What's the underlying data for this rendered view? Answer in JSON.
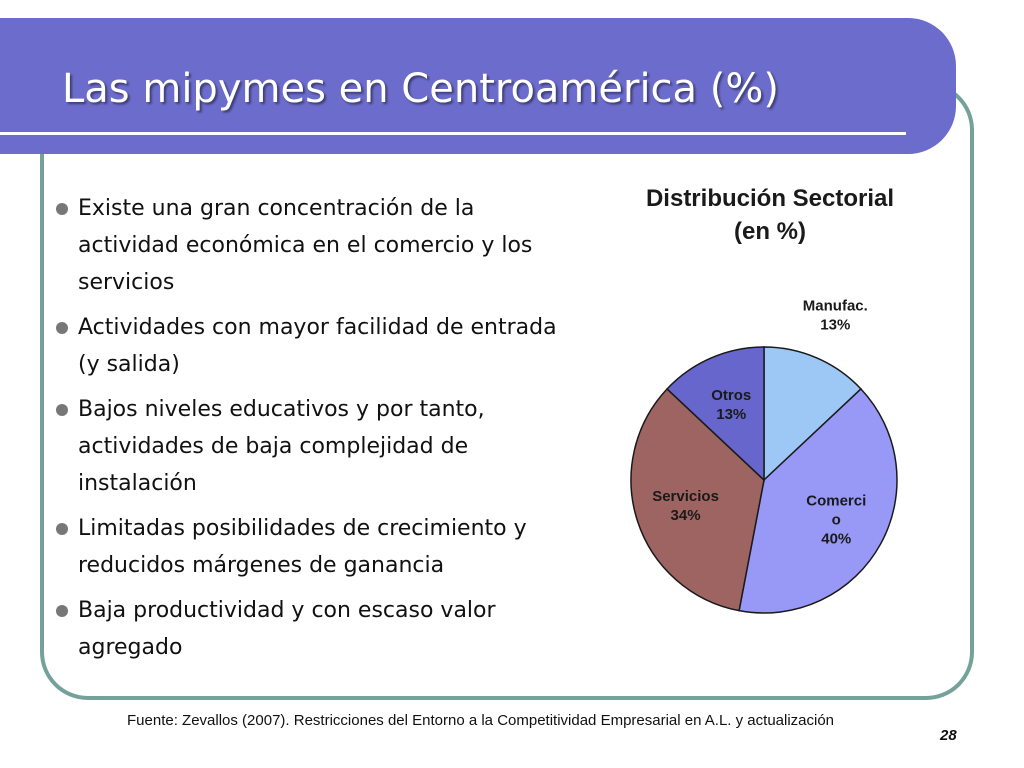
{
  "slide": {
    "title": "Las mipymes en Centroamérica (%)",
    "page_number": "28",
    "source": "Fuente: Zevallos (2007). Restricciones del Entorno a la Competitividad Empresarial en A.L. y actualización"
  },
  "bullets": [
    "Existe una gran concentración de la actividad económica en el comercio y los servicios",
    "Actividades con mayor facilidad de entrada (y salida)",
    "Bajos niveles educativos y por tanto, actividades de baja complejidad de instalación",
    "Limitadas posibilidades de crecimiento y reducidos márgenes de ganancia",
    "Baja productividad y con escaso valor agregado"
  ],
  "colors": {
    "title_bar": "#6c6ccc",
    "frame_border": "#74a29a"
  },
  "chart_data": {
    "type": "pie",
    "title": "Distribución Sectorial",
    "subtitle": "(en %)",
    "slices": [
      {
        "label": "Manufac.",
        "value": 13,
        "value_label": "13%",
        "color": "#9dc8f6"
      },
      {
        "label": "Comerci\no",
        "value": 40,
        "value_label": "40%",
        "color": "#9898f6"
      },
      {
        "label": "Servicios",
        "value": 34,
        "value_label": "34%",
        "color": "#9e6462"
      },
      {
        "label": "Otros",
        "value": 13,
        "value_label": "13%",
        "color": "#6666cc"
      }
    ]
  }
}
